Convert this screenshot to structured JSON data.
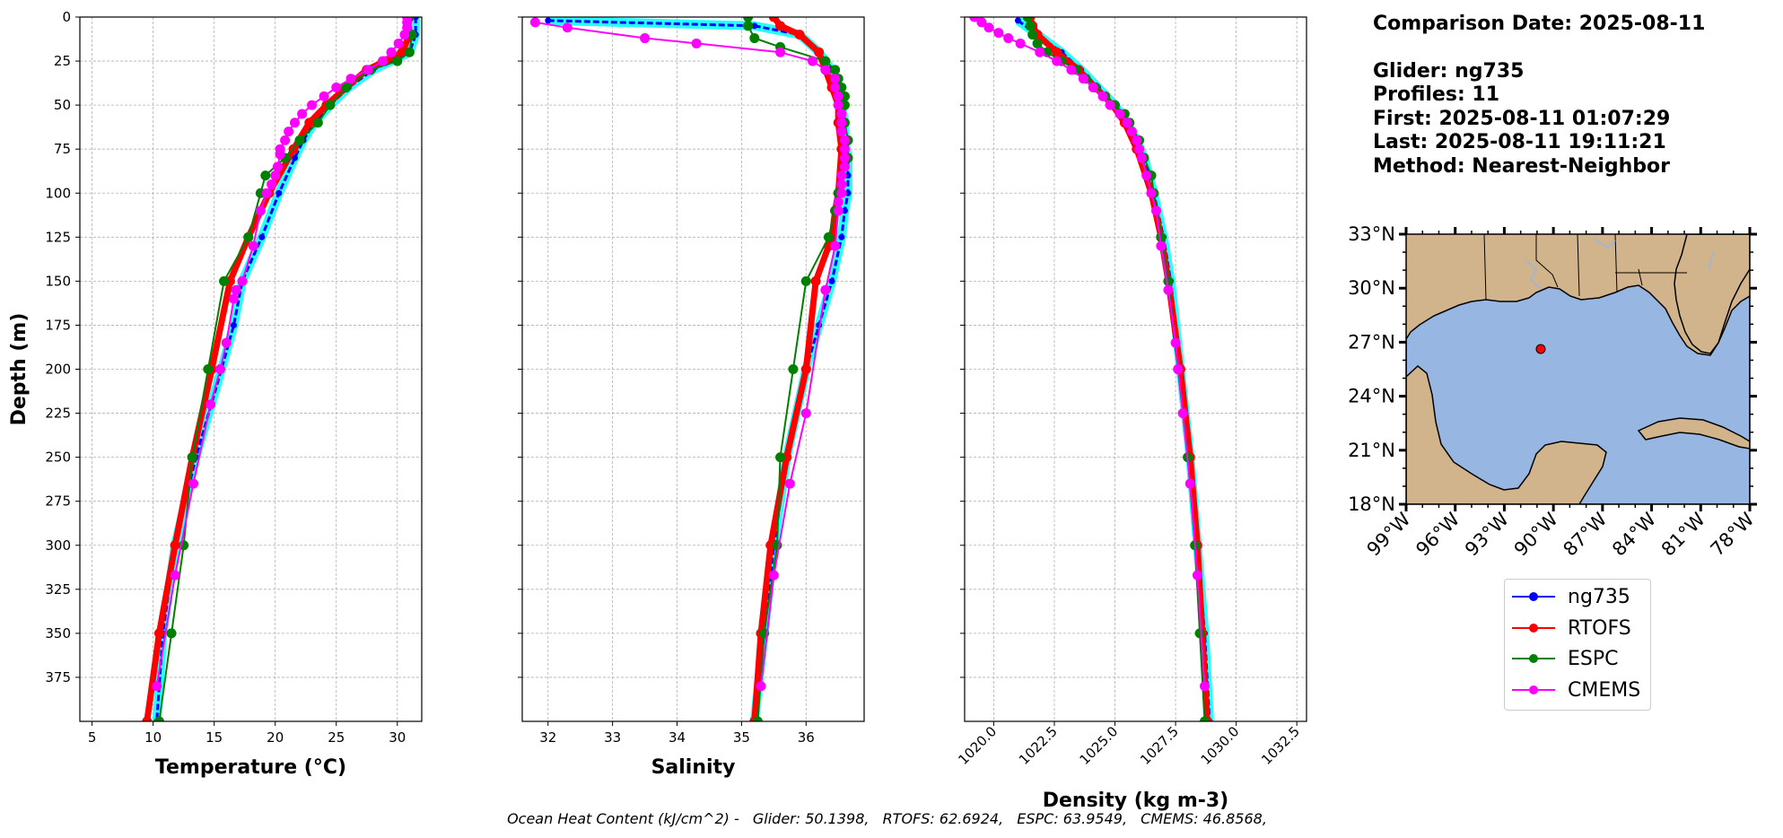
{
  "info": {
    "comparison_date": "Comparison Date: 2025-08-11",
    "glider": "Glider: ng735",
    "profiles": "Profiles: 11",
    "first": "First: 2025-08-11 01:07:29",
    "last": "Last: 2025-08-11 19:11:21",
    "method": "Method: Nearest-Neighbor"
  },
  "footer": {
    "prefix": "Ocean Heat Content (kJ/cm^2) -",
    "items": [
      "Glider: 50.1398,",
      "RTOFS: 62.6924,",
      "ESPC: 63.9549,",
      "CMEMS: 46.8568,"
    ]
  },
  "colors": {
    "ng735": "#0000ff",
    "profiles_halo": "#00ffff",
    "RTOFS": "#ff0000",
    "ESPC": "#008000",
    "CMEMS": "#ff00ff",
    "land": "#d2b48c",
    "ocean": "#97b6e1"
  },
  "legend": {
    "labels": [
      "ng735",
      "RTOFS",
      "ESPC",
      "CMEMS"
    ]
  },
  "chart_data": [
    {
      "type": "line",
      "xlabel": "Temperature (°C)",
      "ylabel": "Depth (m)",
      "xlim": [
        4,
        32
      ],
      "ylim": [
        400,
        0
      ],
      "y_inverted": true,
      "grid": true,
      "x_ticks": [
        5,
        10,
        15,
        20,
        25,
        30
      ],
      "y_ticks": [
        0,
        25,
        50,
        75,
        100,
        125,
        150,
        175,
        200,
        225,
        250,
        275,
        300,
        325,
        350,
        375
      ],
      "series": [
        {
          "name": "ng735",
          "depth": [
            0,
            10,
            20,
            30,
            40,
            50,
            60,
            70,
            80,
            100,
            125,
            150,
            175,
            200,
            250,
            300,
            350,
            400
          ],
          "values": [
            31.5,
            31.5,
            31.0,
            28.0,
            26.0,
            24.5,
            23.2,
            22.3,
            21.6,
            20.3,
            18.9,
            17.3,
            16.6,
            15.6,
            13.5,
            11.8,
            10.8,
            10.3
          ]
        },
        {
          "name": "RTOFS",
          "depth": [
            0,
            10,
            20,
            25,
            30,
            40,
            50,
            60,
            75,
            100,
            125,
            150,
            200,
            250,
            300,
            350,
            400
          ],
          "values": [
            30.8,
            31.0,
            30.4,
            29.0,
            27.5,
            25.8,
            24.2,
            22.8,
            21.5,
            19.5,
            17.8,
            16.3,
            14.8,
            13.2,
            11.8,
            10.5,
            9.5
          ]
        },
        {
          "name": "ESPC",
          "depth": [
            0,
            10,
            20,
            25,
            30,
            40,
            50,
            60,
            70,
            80,
            90,
            100,
            125,
            150,
            200,
            250,
            300,
            350,
            400
          ],
          "values": [
            31.0,
            31.2,
            31.0,
            30.0,
            27.8,
            25.8,
            24.5,
            23.5,
            22.0,
            20.8,
            19.2,
            18.8,
            17.8,
            15.8,
            14.5,
            13.2,
            12.5,
            11.5,
            10.5
          ]
        },
        {
          "name": "CMEMS",
          "depth": [
            0,
            3,
            6,
            10,
            15,
            20,
            25,
            30,
            35,
            40,
            45,
            50,
            55,
            60,
            65,
            70,
            75,
            78,
            85,
            90,
            95,
            100,
            110,
            130,
            150,
            155,
            160,
            185,
            200,
            220,
            265,
            317,
            380
          ],
          "values": [
            30.8,
            30.8,
            30.8,
            30.6,
            30.1,
            29.5,
            28.8,
            27.6,
            26.2,
            25.0,
            24.0,
            23.0,
            22.2,
            21.6,
            21.1,
            20.8,
            20.4,
            20.4,
            20.2,
            20.0,
            19.7,
            19.3,
            18.8,
            18.2,
            17.3,
            16.8,
            16.6,
            16.0,
            15.5,
            14.7,
            13.3,
            11.8,
            10.3
          ]
        }
      ]
    },
    {
      "type": "line",
      "xlabel": "Salinity",
      "ylabel": "",
      "xlim": [
        31.6,
        36.9
      ],
      "ylim": [
        400,
        0
      ],
      "y_inverted": true,
      "grid": true,
      "x_ticks": [
        32,
        33,
        34,
        35,
        36
      ],
      "y_ticks": [
        0,
        25,
        50,
        75,
        100,
        125,
        150,
        175,
        200,
        225,
        250,
        275,
        300,
        325,
        350,
        375
      ],
      "series": [
        {
          "name": "ng735",
          "depth": [
            2,
            5,
            10,
            20,
            30,
            40,
            50,
            60,
            70,
            80,
            90,
            100,
            110,
            125,
            150,
            175,
            200,
            250,
            300,
            350,
            400
          ],
          "values": [
            32.0,
            35.2,
            35.9,
            36.2,
            36.4,
            36.5,
            36.55,
            36.6,
            36.6,
            36.65,
            36.65,
            36.65,
            36.6,
            36.55,
            36.4,
            36.2,
            36.0,
            35.7,
            35.5,
            35.35,
            35.2
          ]
        },
        {
          "name": "RTOFS",
          "depth": [
            0,
            5,
            10,
            20,
            30,
            40,
            50,
            60,
            75,
            100,
            110,
            125,
            130,
            150,
            200,
            250,
            300,
            350,
            400
          ],
          "values": [
            35.5,
            35.6,
            35.9,
            36.2,
            36.3,
            36.4,
            36.5,
            36.5,
            36.55,
            36.5,
            36.45,
            36.4,
            36.35,
            36.15,
            36.0,
            35.7,
            35.45,
            35.3,
            35.2
          ]
        },
        {
          "name": "ESPC",
          "depth": [
            0,
            5,
            12,
            17,
            25,
            30,
            35,
            40,
            45,
            50,
            60,
            70,
            80,
            90,
            100,
            110,
            125,
            150,
            200,
            250,
            300,
            350,
            400
          ],
          "values": [
            35.1,
            35.1,
            35.2,
            35.6,
            36.3,
            36.45,
            36.5,
            36.55,
            36.6,
            36.6,
            36.6,
            36.65,
            36.65,
            36.55,
            36.5,
            36.45,
            36.35,
            36.0,
            35.8,
            35.6,
            35.55,
            35.35,
            35.25
          ]
        },
        {
          "name": "CMEMS",
          "depth": [
            3,
            6,
            12,
            15,
            20,
            25,
            30,
            35,
            40,
            45,
            50,
            55,
            60,
            65,
            70,
            75,
            80,
            85,
            90,
            95,
            100,
            105,
            110,
            130,
            155,
            225,
            265,
            317,
            380
          ],
          "values": [
            31.8,
            32.3,
            33.5,
            34.3,
            35.6,
            36.1,
            36.3,
            36.45,
            36.45,
            36.5,
            36.5,
            36.55,
            36.55,
            36.55,
            36.6,
            36.6,
            36.6,
            36.6,
            36.55,
            36.55,
            36.55,
            36.5,
            36.5,
            36.45,
            36.3,
            36.0,
            35.75,
            35.5,
            35.3
          ]
        }
      ]
    },
    {
      "type": "line",
      "xlabel": "Density (kg m-3)",
      "ylabel": "",
      "xlim": [
        1018.8,
        1032.9
      ],
      "ylim": [
        400,
        0
      ],
      "y_inverted": true,
      "grid": true,
      "x_ticks": [
        1020.0,
        1022.5,
        1025.0,
        1027.5,
        1030.0,
        1032.5
      ],
      "y_ticks": [
        0,
        25,
        50,
        75,
        100,
        125,
        150,
        175,
        200,
        225,
        250,
        275,
        300,
        325,
        350,
        375
      ],
      "series": [
        {
          "name": "ng735",
          "depth": [
            2,
            10,
            20,
            30,
            40,
            50,
            60,
            70,
            80,
            100,
            125,
            150,
            200,
            250,
            300,
            350,
            400
          ],
          "values": [
            1021.0,
            1021.8,
            1022.8,
            1023.6,
            1024.3,
            1025.0,
            1025.5,
            1025.9,
            1026.2,
            1026.6,
            1027.0,
            1027.3,
            1027.7,
            1028.1,
            1028.4,
            1028.7,
            1028.9
          ]
        },
        {
          "name": "RTOFS",
          "depth": [
            0,
            5,
            10,
            20,
            30,
            40,
            50,
            60,
            75,
            100,
            125,
            150,
            200,
            250,
            300,
            350,
            400
          ],
          "values": [
            1021.5,
            1021.6,
            1021.8,
            1022.6,
            1023.5,
            1024.2,
            1024.9,
            1025.4,
            1025.9,
            1026.5,
            1026.9,
            1027.2,
            1027.7,
            1028.1,
            1028.4,
            1028.6,
            1028.8
          ]
        },
        {
          "name": "ESPC",
          "depth": [
            0,
            5,
            10,
            15,
            20,
            25,
            30,
            35,
            40,
            45,
            50,
            55,
            60,
            70,
            80,
            90,
            100,
            125,
            150,
            200,
            250,
            300,
            350,
            400
          ],
          "values": [
            1021.4,
            1021.5,
            1021.6,
            1021.8,
            1022.2,
            1022.8,
            1023.4,
            1023.8,
            1024.2,
            1024.6,
            1025.0,
            1025.4,
            1025.6,
            1026.0,
            1026.2,
            1026.5,
            1026.6,
            1026.9,
            1027.2,
            1027.6,
            1028.0,
            1028.3,
            1028.5,
            1028.7
          ]
        },
        {
          "name": "CMEMS",
          "depth": [
            0,
            3,
            6,
            9,
            12,
            15,
            20,
            25,
            30,
            35,
            40,
            45,
            50,
            55,
            60,
            65,
            70,
            75,
            80,
            90,
            100,
            110,
            130,
            155,
            185,
            200,
            225,
            265,
            317,
            380
          ],
          "values": [
            1019.2,
            1019.5,
            1019.8,
            1020.2,
            1020.6,
            1021.1,
            1021.9,
            1022.6,
            1023.2,
            1023.7,
            1024.1,
            1024.5,
            1024.8,
            1025.2,
            1025.5,
            1025.7,
            1025.9,
            1026.0,
            1026.1,
            1026.3,
            1026.5,
            1026.7,
            1026.9,
            1027.2,
            1027.5,
            1027.6,
            1027.8,
            1028.1,
            1028.4,
            1028.7
          ]
        }
      ]
    },
    {
      "type": "map",
      "lon_range": [
        -99,
        -78
      ],
      "lat_range": [
        18,
        33
      ],
      "x_ticks": [
        "99°W",
        "96°W",
        "93°W",
        "90°W",
        "87°W",
        "84°W",
        "81°W",
        "78°W"
      ],
      "y_ticks": [
        "33°N",
        "30°N",
        "27°N",
        "24°N",
        "21°N",
        "18°N"
      ],
      "glider_position": {
        "lon": -90.3,
        "lat": 26.9
      }
    }
  ]
}
